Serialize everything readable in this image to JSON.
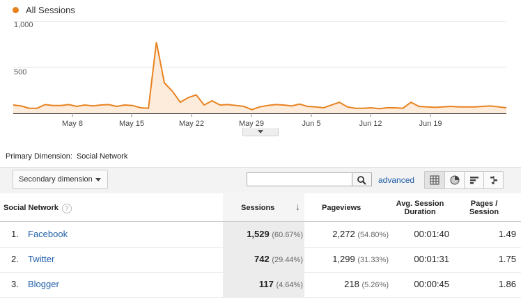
{
  "chart": {
    "legend": "All Sessions",
    "y_ticks": [
      "1,000",
      "500"
    ],
    "x_labels": [
      "May 8",
      "May 15",
      "May 22",
      "May 29",
      "Jun 5",
      "Jun 12",
      "Jun 19"
    ],
    "series_color": "#e8821e",
    "fill_color": "#fdebdc"
  },
  "chart_data": {
    "type": "area",
    "ylim": [
      0,
      1000
    ],
    "series": [
      {
        "name": "All Sessions",
        "values": [
          90,
          80,
          55,
          55,
          95,
          85,
          85,
          95,
          75,
          90,
          80,
          90,
          95,
          75,
          90,
          85,
          60,
          55,
          770,
          330,
          240,
          120,
          170,
          200,
          90,
          135,
          90,
          95,
          85,
          75,
          40,
          70,
          85,
          95,
          90,
          80,
          100,
          75,
          70,
          60,
          90,
          120,
          70,
          55,
          55,
          60,
          50,
          60,
          60,
          55,
          120,
          75,
          70,
          65,
          70,
          75,
          70,
          70,
          70,
          75,
          80,
          70,
          60
        ]
      }
    ]
  },
  "primary_dimension": {
    "label": "Primary Dimension:",
    "value": "Social Network"
  },
  "toolbar": {
    "secondary_dimension": "Secondary dimension",
    "search_placeholder": "",
    "advanced": "advanced"
  },
  "table": {
    "headers": {
      "network": "Social Network",
      "help": "?",
      "sessions": "Sessions",
      "sort_arrow": "↓",
      "pageviews": "Pageviews",
      "duration_1": "Avg. Session",
      "duration_2": "Duration",
      "pps_1": "Pages /",
      "pps_2": "Session"
    },
    "rows": [
      {
        "rank": "1.",
        "name": "Facebook",
        "sessions": "1,529",
        "sessions_pct": "(60.67%)",
        "pageviews": "2,272",
        "pageviews_pct": "(54.80%)",
        "duration": "00:01:40",
        "pps": "1.49"
      },
      {
        "rank": "2.",
        "name": "Twitter",
        "sessions": "742",
        "sessions_pct": "(29.44%)",
        "pageviews": "1,299",
        "pageviews_pct": "(31.33%)",
        "duration": "00:01:31",
        "pps": "1.75"
      },
      {
        "rank": "3.",
        "name": "Blogger",
        "sessions": "117",
        "sessions_pct": "(4.64%)",
        "pageviews": "218",
        "pageviews_pct": "(5.26%)",
        "duration": "00:00:45",
        "pps": "1.86"
      }
    ]
  }
}
